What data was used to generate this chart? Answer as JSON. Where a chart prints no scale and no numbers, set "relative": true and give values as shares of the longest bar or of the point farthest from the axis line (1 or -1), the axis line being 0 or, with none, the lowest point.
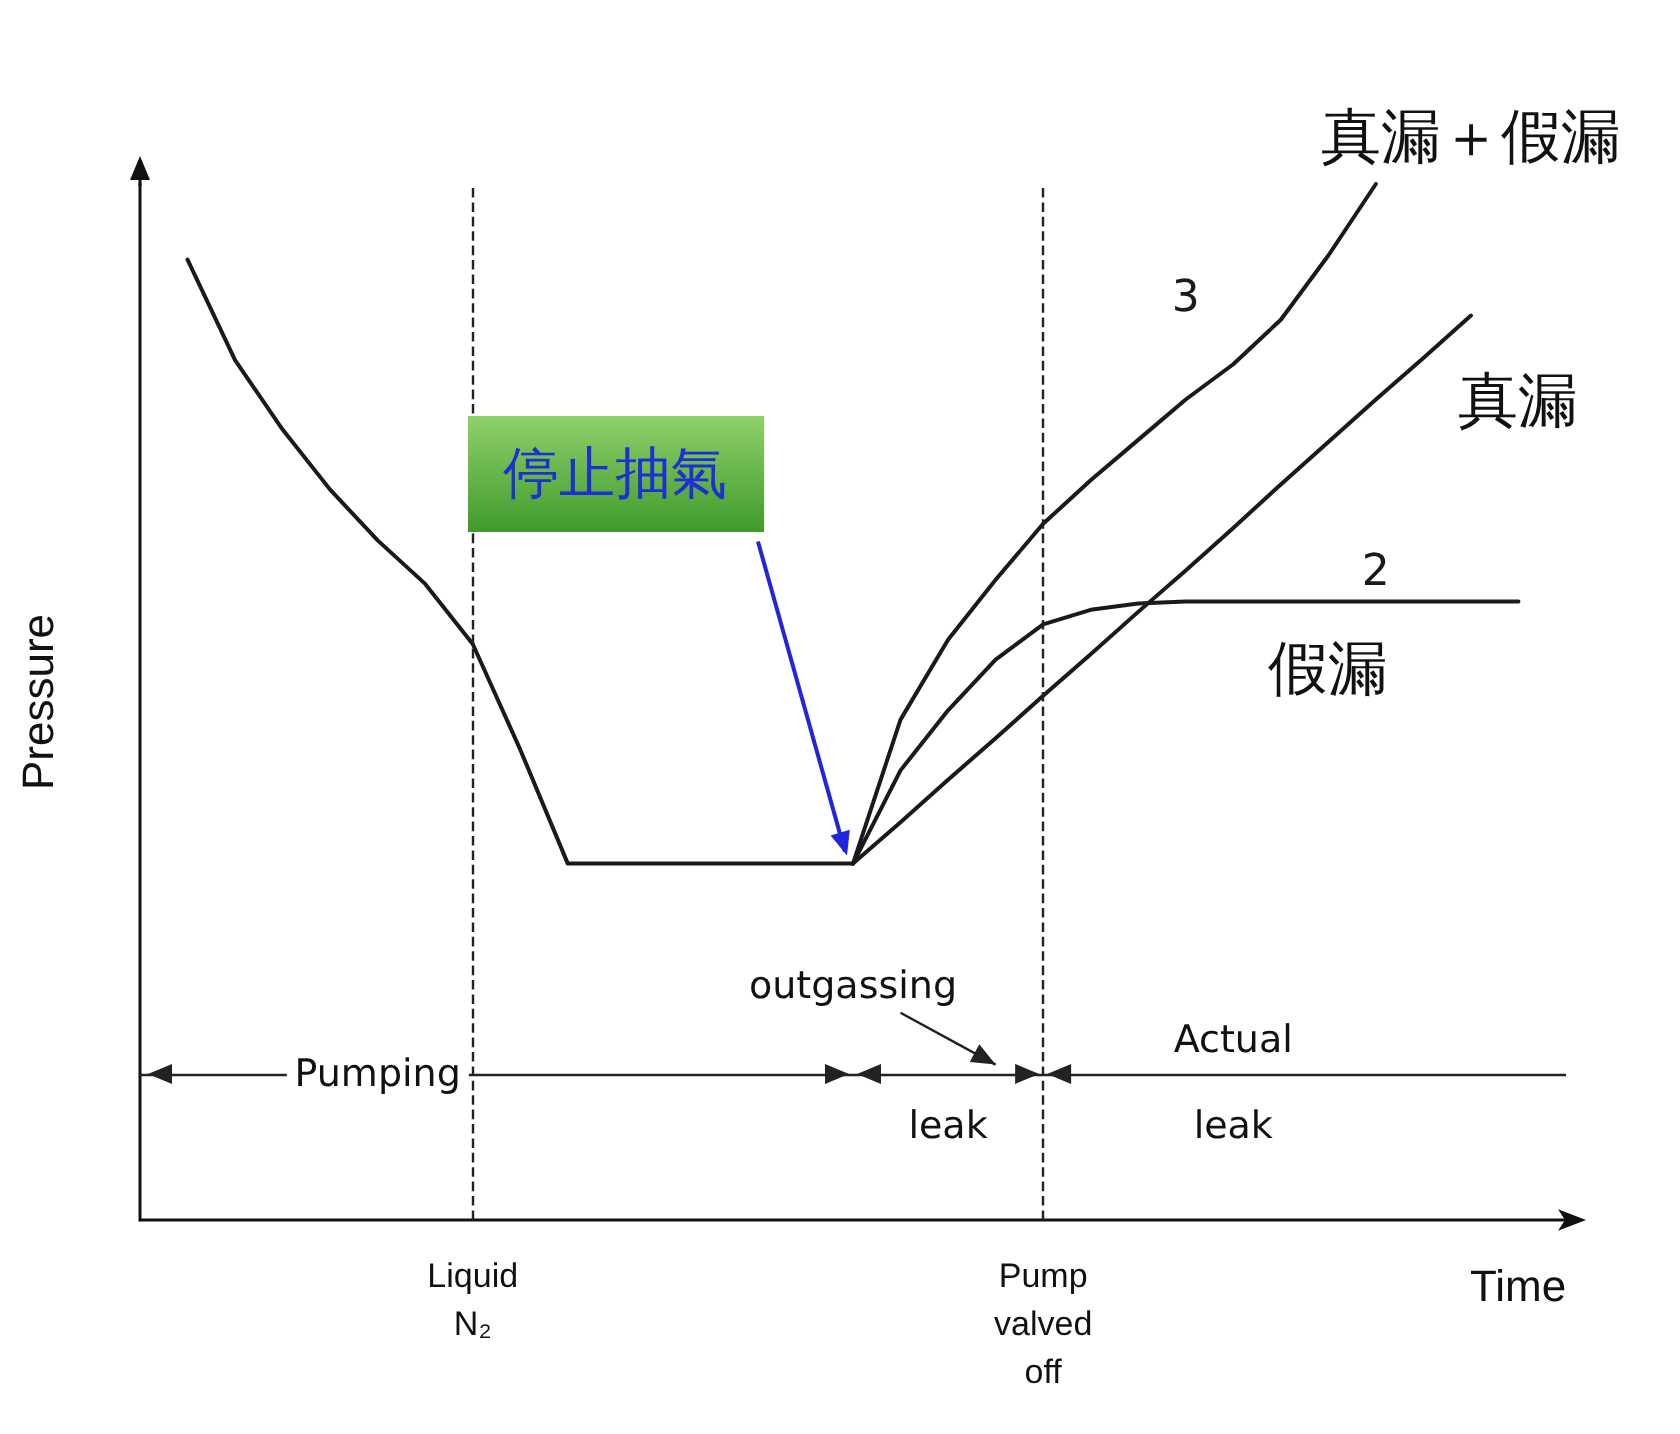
{
  "chart_data": {
    "type": "line",
    "relative": true,
    "xlabel": "Time",
    "ylabel": "Pressure",
    "categories": [
      null,
      null,
      null,
      null,
      null,
      null,
      null,
      "Liquid N₂",
      null,
      null,
      null,
      null,
      null,
      null,
      null,
      null,
      null,
      null,
      null,
      "Pump valved off",
      null,
      null,
      null,
      null,
      null,
      null,
      null,
      null,
      null,
      null,
      null
    ],
    "series": [
      {
        "color": "#1a1a1a",
        "values": [
          null,
          0.927,
          0.83,
          0.763,
          0.705,
          0.656,
          0.614,
          0.556,
          0.454,
          0.344,
          0.344,
          0.344,
          0.344,
          0.344,
          0.344,
          0.344,
          null,
          null,
          null,
          null,
          null,
          null,
          null,
          null,
          null,
          null,
          null,
          null,
          null,
          null,
          null
        ]
      },
      {
        "name": "3",
        "color": "#1a1a1a",
        "values": [
          null,
          null,
          null,
          null,
          null,
          null,
          null,
          null,
          null,
          null,
          null,
          null,
          null,
          null,
          null,
          0.344,
          0.483,
          0.56,
          0.618,
          0.672,
          0.714,
          0.753,
          0.792,
          0.826,
          0.869,
          0.931,
          1.0,
          null,
          null,
          null,
          null
        ]
      },
      {
        "name": "2",
        "color": "#1a1a1a",
        "values": [
          null,
          null,
          null,
          null,
          null,
          null,
          null,
          null,
          null,
          null,
          null,
          null,
          null,
          null,
          null,
          0.344,
          0.434,
          0.492,
          0.541,
          0.575,
          0.589,
          0.595,
          0.597,
          0.597,
          0.597,
          0.597,
          0.597,
          0.597,
          0.597,
          0.597,
          null
        ]
      },
      {
        "color": "#1a1a1a",
        "values": [
          null,
          null,
          null,
          null,
          null,
          null,
          null,
          null,
          null,
          null,
          null,
          null,
          null,
          null,
          null,
          0.344,
          0.384,
          0.425,
          0.465,
          0.506,
          0.546,
          0.587,
          0.627,
          0.668,
          0.71,
          0.751,
          0.792,
          0.832,
          0.873,
          null,
          null
        ]
      }
    ],
    "ref_lines": [
      {
        "axis": "x",
        "value": "Liquid N₂",
        "label": null,
        "line_style": "dashed"
      },
      {
        "axis": "x",
        "value": "Pump valved off",
        "label": null,
        "line_style": "dashed"
      },
      {
        "axis": "y",
        "value": 0.141,
        "label": null,
        "line_style": "solid",
        "color": "#222222"
      }
    ],
    "annotations": [
      "真漏＋假漏",
      "真漏",
      "假漏",
      "停止抽氣",
      "Pumping",
      "outgassing",
      "leak",
      "Actual",
      "leak"
    ],
    "legend": false,
    "grid": false,
    "marker": "none",
    "line_style": "solid",
    "tick_labels": "x"
  }
}
